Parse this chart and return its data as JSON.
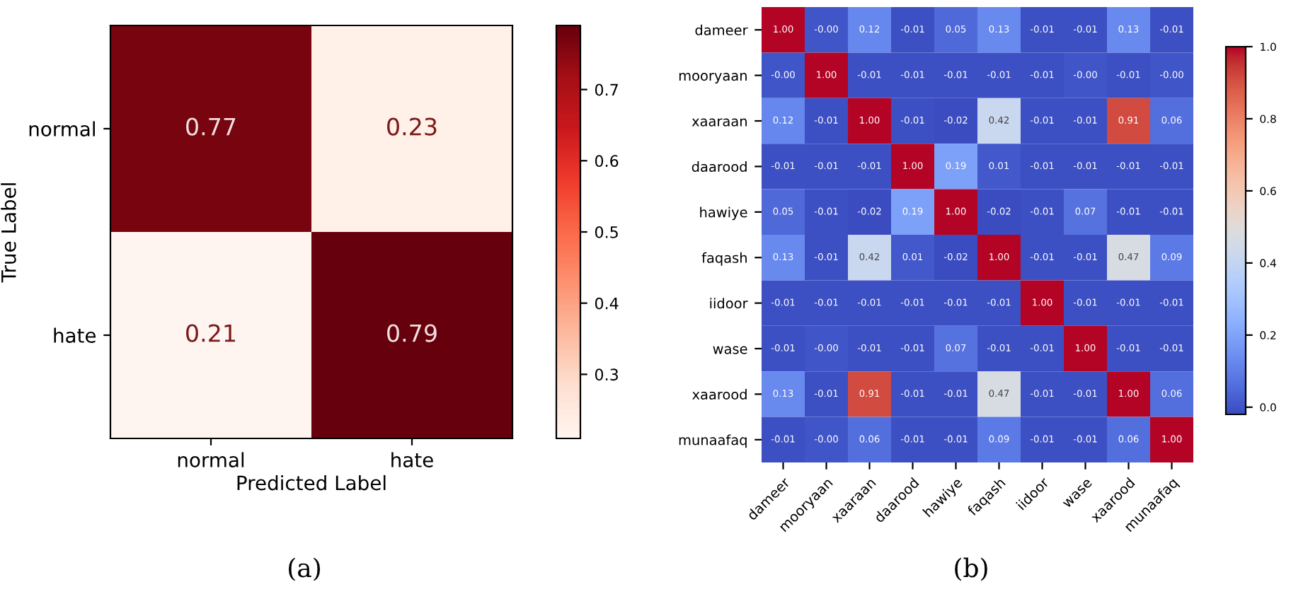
{
  "chart_data": [
    {
      "type": "heatmap",
      "xlabel": "Predicted Label",
      "ylabel": "True Label",
      "annotations": [
        "(a)"
      ],
      "categories": [
        "normal",
        "hate"
      ],
      "y_categories": [
        "normal",
        "hate"
      ],
      "cells": [
        [
          0.77,
          0.23
        ],
        [
          0.21,
          0.79
        ]
      ],
      "cell_labels": [
        [
          "0.77",
          "0.23"
        ],
        [
          "0.21",
          "0.79"
        ]
      ],
      "clim": [
        0.21,
        0.79
      ],
      "cticks": [
        0.3,
        0.4,
        0.5,
        0.6,
        0.7
      ],
      "grid": false
    },
    {
      "type": "heatmap",
      "annotations": [
        "(b)"
      ],
      "categories": [
        "dameer",
        "mooryaan",
        "xaaraan",
        "daarood",
        "hawiye",
        "faqash",
        "iidoor",
        "wase",
        "xaarood",
        "munaafaq"
      ],
      "y_categories": [
        "dameer",
        "mooryaan",
        "xaaraan",
        "daarood",
        "hawiye",
        "faqash",
        "iidoor",
        "wase",
        "xaarood",
        "munaafaq"
      ],
      "cells": [
        [
          1.0,
          0.0,
          0.12,
          -0.01,
          0.05,
          0.13,
          -0.01,
          -0.01,
          0.13,
          -0.01
        ],
        [
          0.0,
          1.0,
          -0.01,
          -0.01,
          -0.01,
          -0.01,
          -0.01,
          0.0,
          -0.01,
          0.0
        ],
        [
          0.12,
          -0.01,
          1.0,
          -0.01,
          -0.02,
          0.42,
          -0.01,
          -0.01,
          0.91,
          0.06
        ],
        [
          -0.01,
          -0.01,
          -0.01,
          1.0,
          0.19,
          0.01,
          -0.01,
          -0.01,
          -0.01,
          -0.01
        ],
        [
          0.05,
          -0.01,
          -0.02,
          0.19,
          1.0,
          -0.02,
          -0.01,
          0.07,
          -0.01,
          -0.01
        ],
        [
          0.13,
          -0.01,
          0.42,
          0.01,
          -0.02,
          1.0,
          -0.01,
          -0.01,
          0.47,
          0.09
        ],
        [
          -0.01,
          -0.01,
          -0.01,
          -0.01,
          -0.01,
          -0.01,
          1.0,
          -0.01,
          -0.01,
          -0.01
        ],
        [
          -0.01,
          0.0,
          -0.01,
          -0.01,
          0.07,
          -0.01,
          -0.01,
          1.0,
          -0.01,
          -0.01
        ],
        [
          0.13,
          -0.01,
          0.91,
          -0.01,
          -0.01,
          0.47,
          -0.01,
          -0.01,
          1.0,
          0.06
        ],
        [
          -0.01,
          0.0,
          0.06,
          -0.01,
          -0.01,
          0.09,
          -0.01,
          -0.01,
          0.06,
          1.0
        ]
      ],
      "cell_labels": [
        [
          "1.00",
          "-0.00",
          "0.12",
          "-0.01",
          "0.05",
          "0.13",
          "-0.01",
          "-0.01",
          "0.13",
          "-0.01"
        ],
        [
          "-0.00",
          "1.00",
          "-0.01",
          "-0.01",
          "-0.01",
          "-0.01",
          "-0.01",
          "-0.00",
          "-0.01",
          "-0.00"
        ],
        [
          "0.12",
          "-0.01",
          "1.00",
          "-0.01",
          "-0.02",
          "0.42",
          "-0.01",
          "-0.01",
          "0.91",
          "0.06"
        ],
        [
          "-0.01",
          "-0.01",
          "-0.01",
          "1.00",
          "0.19",
          "0.01",
          "-0.01",
          "-0.01",
          "-0.01",
          "-0.01"
        ],
        [
          "0.05",
          "-0.01",
          "-0.02",
          "0.19",
          "1.00",
          "-0.02",
          "-0.01",
          "0.07",
          "-0.01",
          "-0.01"
        ],
        [
          "0.13",
          "-0.01",
          "0.42",
          "0.01",
          "-0.02",
          "1.00",
          "-0.01",
          "-0.01",
          "0.47",
          "0.09"
        ],
        [
          "-0.01",
          "-0.01",
          "-0.01",
          "-0.01",
          "-0.01",
          "-0.01",
          "1.00",
          "-0.01",
          "-0.01",
          "-0.01"
        ],
        [
          "-0.01",
          "-0.00",
          "-0.01",
          "-0.01",
          "0.07",
          "-0.01",
          "-0.01",
          "1.00",
          "-0.01",
          "-0.01"
        ],
        [
          "0.13",
          "-0.01",
          "0.91",
          "-0.01",
          "-0.01",
          "0.47",
          "-0.01",
          "-0.01",
          "1.00",
          "0.06"
        ],
        [
          "-0.01",
          "-0.00",
          "0.06",
          "-0.01",
          "-0.01",
          "0.09",
          "-0.01",
          "-0.01",
          "0.06",
          "1.00"
        ]
      ],
      "clim": [
        -0.02,
        1.0
      ],
      "cticks": [
        {
          "value": 0,
          "label": "0.0"
        },
        0.2,
        0.4,
        0.6,
        0.8,
        {
          "value": 1,
          "label": "1.0"
        }
      ],
      "grid": false
    }
  ]
}
